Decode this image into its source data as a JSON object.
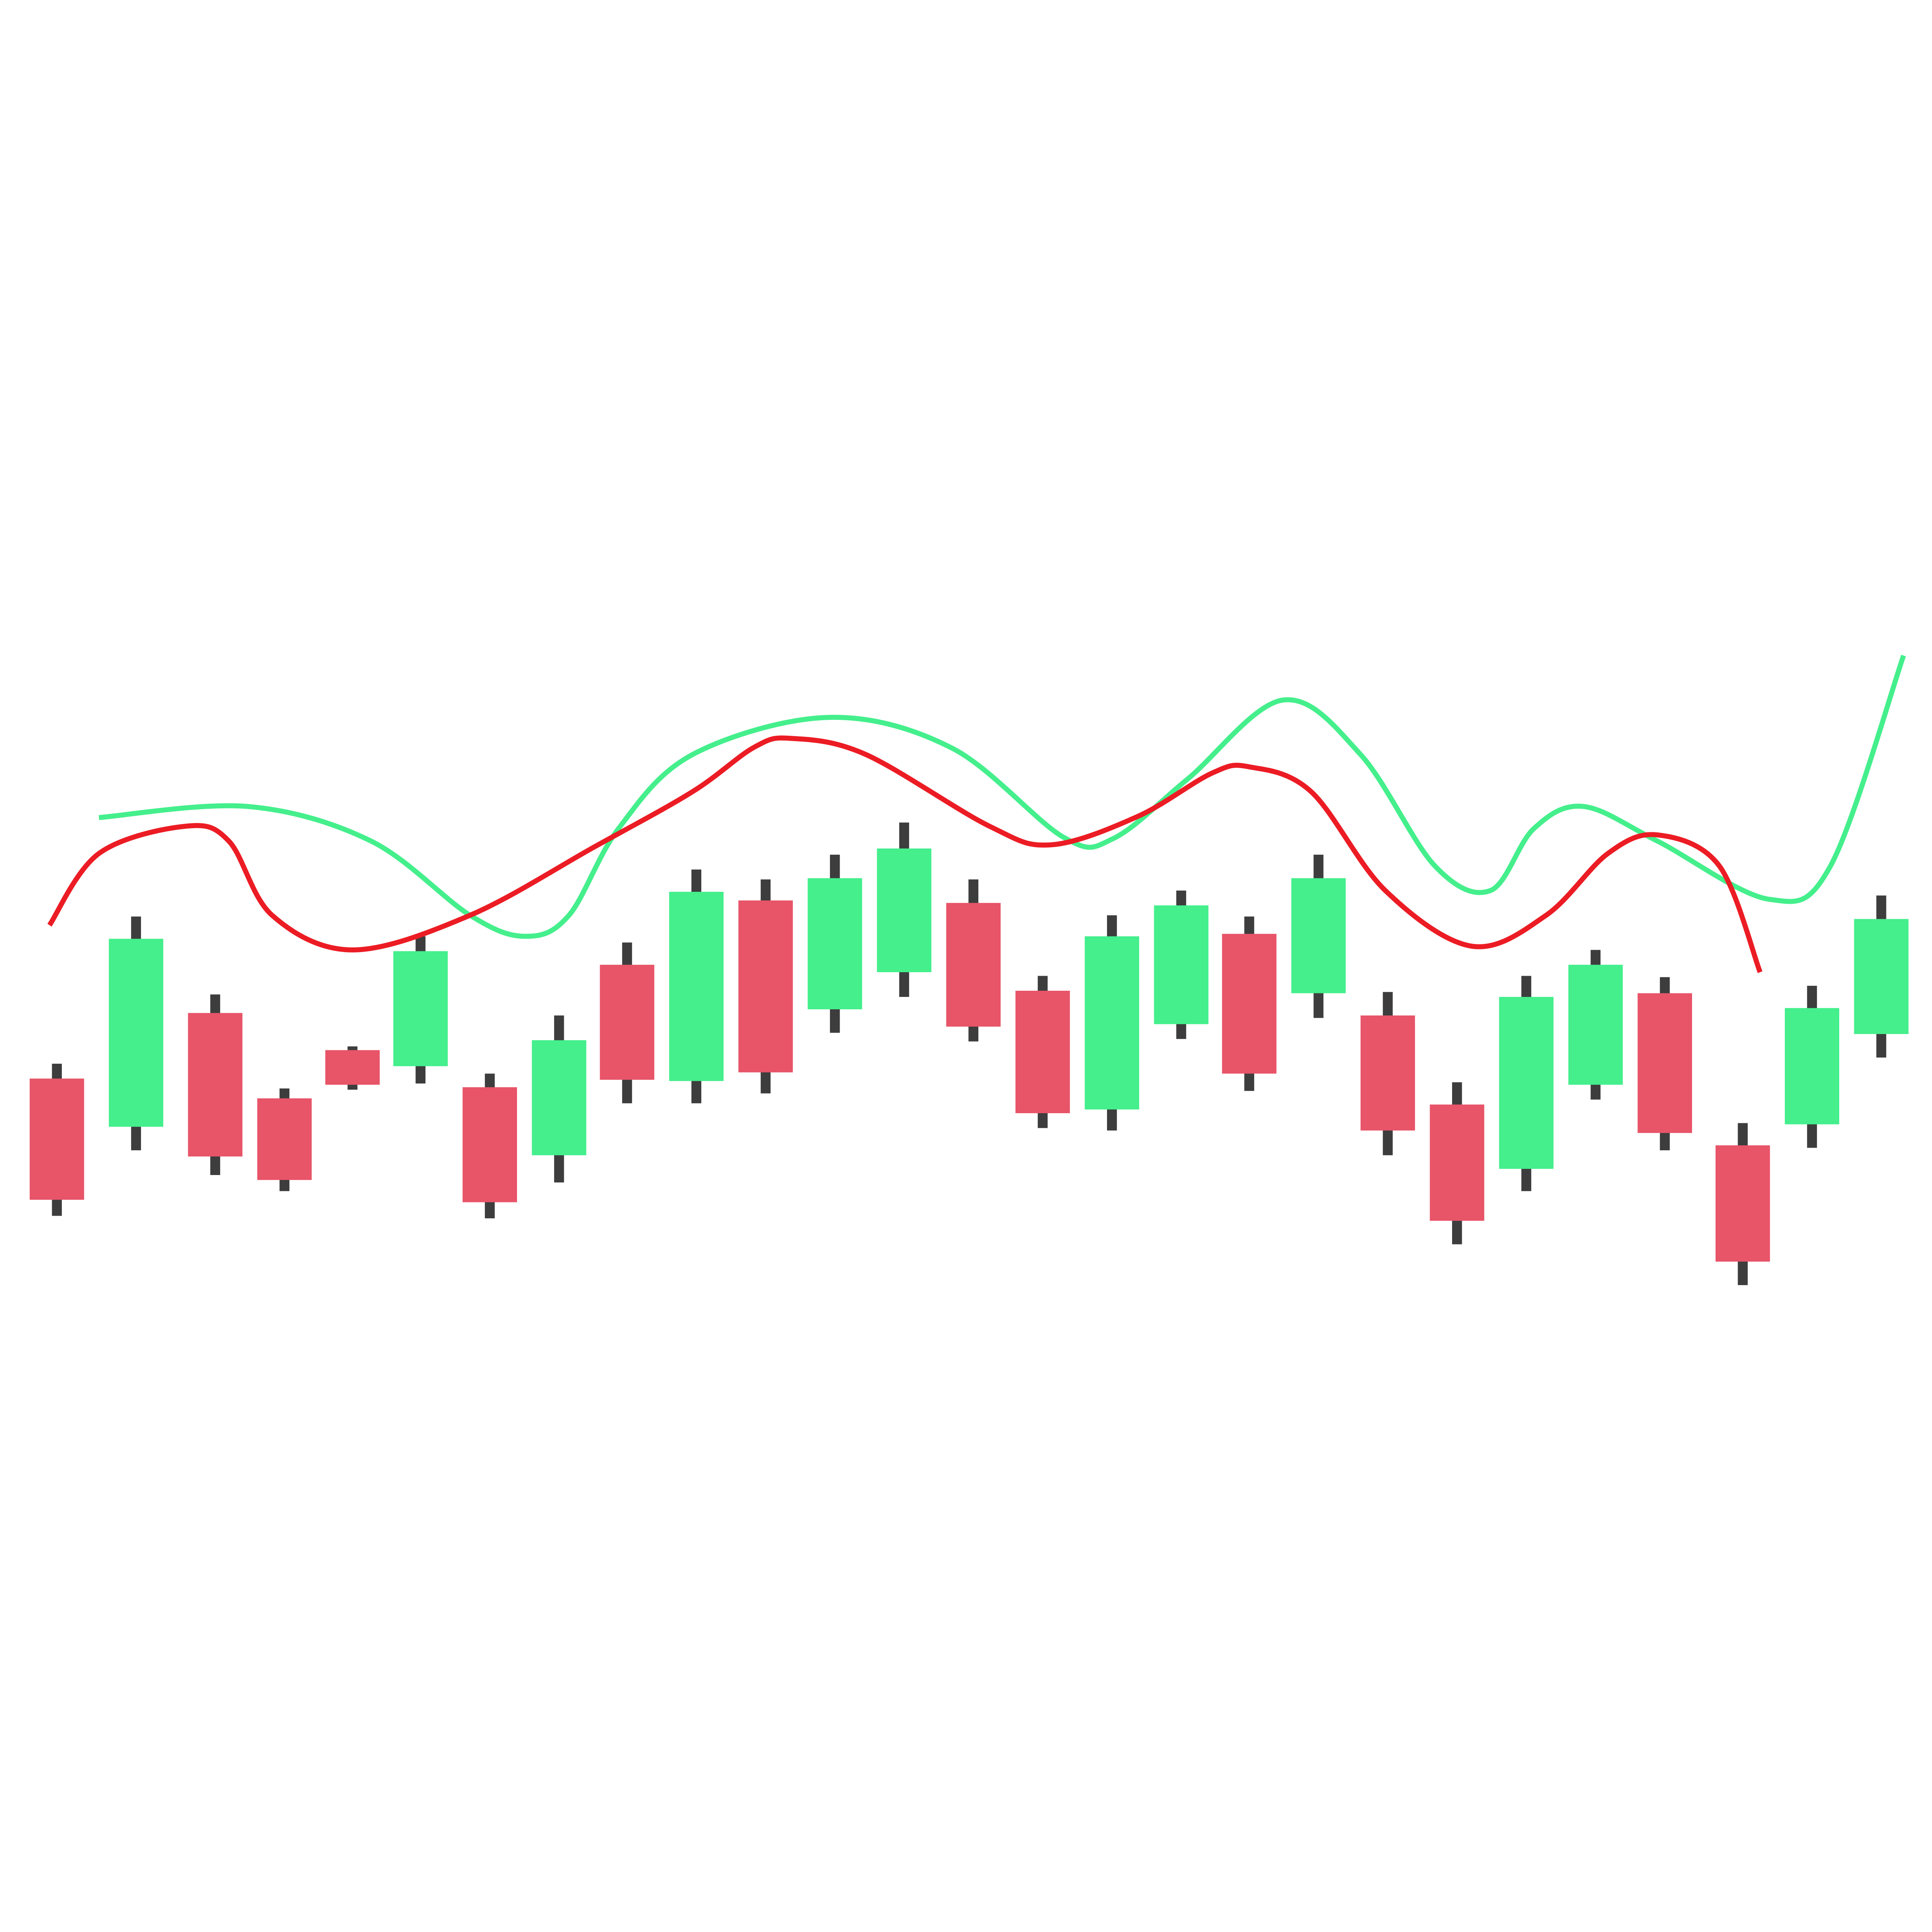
{
  "chart_data": {
    "type": "candlestick",
    "x": [
      46,
      110,
      174,
      230,
      285,
      340,
      396,
      452,
      507,
      563,
      619,
      675,
      731,
      787,
      843,
      899,
      955,
      1010,
      1066,
      1122,
      1178,
      1234,
      1290,
      1346,
      1409,
      1465,
      1521
    ],
    "open": [
      690,
      651,
      743,
      674,
      713,
      700,
      683,
      628,
      782,
      688,
      834,
      746,
      776,
      832,
      761,
      665,
      734,
      807,
      759,
      741,
      669,
      617,
      685,
      759,
      636,
      653,
      726
    ],
    "high": [
      702,
      821,
      758,
      682,
      716,
      805,
      694,
      741,
      800,
      859,
      851,
      871,
      897,
      851,
      773,
      822,
      842,
      821,
      871,
      760,
      687,
      773,
      794,
      772,
      654,
      765,
      838
    ],
    "low": [
      579,
      632,
      612,
      599,
      681,
      686,
      577,
      606,
      670,
      670,
      678,
      727,
      756,
      720,
      650,
      648,
      722,
      680,
      739,
      628,
      556,
      599,
      673,
      632,
      523,
      634,
      707
    ],
    "close": [
      592,
      803,
      627,
      608,
      685,
      793,
      590,
      721,
      689,
      841,
      695,
      852,
      876,
      732,
      662,
      805,
      830,
      694,
      852,
      648,
      575,
      756,
      782,
      646,
      542,
      747,
      819
    ],
    "up_color": "#44ef8c",
    "down_color": "#e85468",
    "wick_color": "#3d3d3d",
    "xlim": [
      0,
      1562
    ],
    "ylim": [
      0,
      1562
    ],
    "lines": [
      {
        "color": "#44ef8c",
        "x": [
          80,
          200,
          300,
          380,
          425,
          460,
          500,
          560,
          670,
          770,
          860,
          900,
          960,
          1037,
          1100,
          1160,
          1205,
          1240,
          1280,
          1340,
          1430,
          1480,
          1539
        ],
        "values": [
          901,
          910,
          882,
          822,
          805,
          822,
          892,
          952,
          982,
          957,
          885,
          884,
          932,
          996,
          952,
          862,
          842,
          892,
          910,
          882,
          835,
          862,
          1032
        ]
      },
      {
        "color": "#ec1c24",
        "x": [
          40,
          80,
          150,
          185,
          220,
          285,
          380,
          480,
          560,
          610,
          640,
          700,
          800,
          850,
          920,
          980,
          1010,
          1060,
          1120,
          1190,
          1250,
          1300,
          1340,
          1390,
          1423
        ],
        "values": [
          814,
          872,
          894,
          882,
          822,
          794,
          822,
          877,
          922,
          958,
          965,
          952,
          894,
          879,
          902,
          937,
          942,
          922,
          842,
          797,
          822,
          872,
          887,
          862,
          776
        ]
      }
    ]
  }
}
